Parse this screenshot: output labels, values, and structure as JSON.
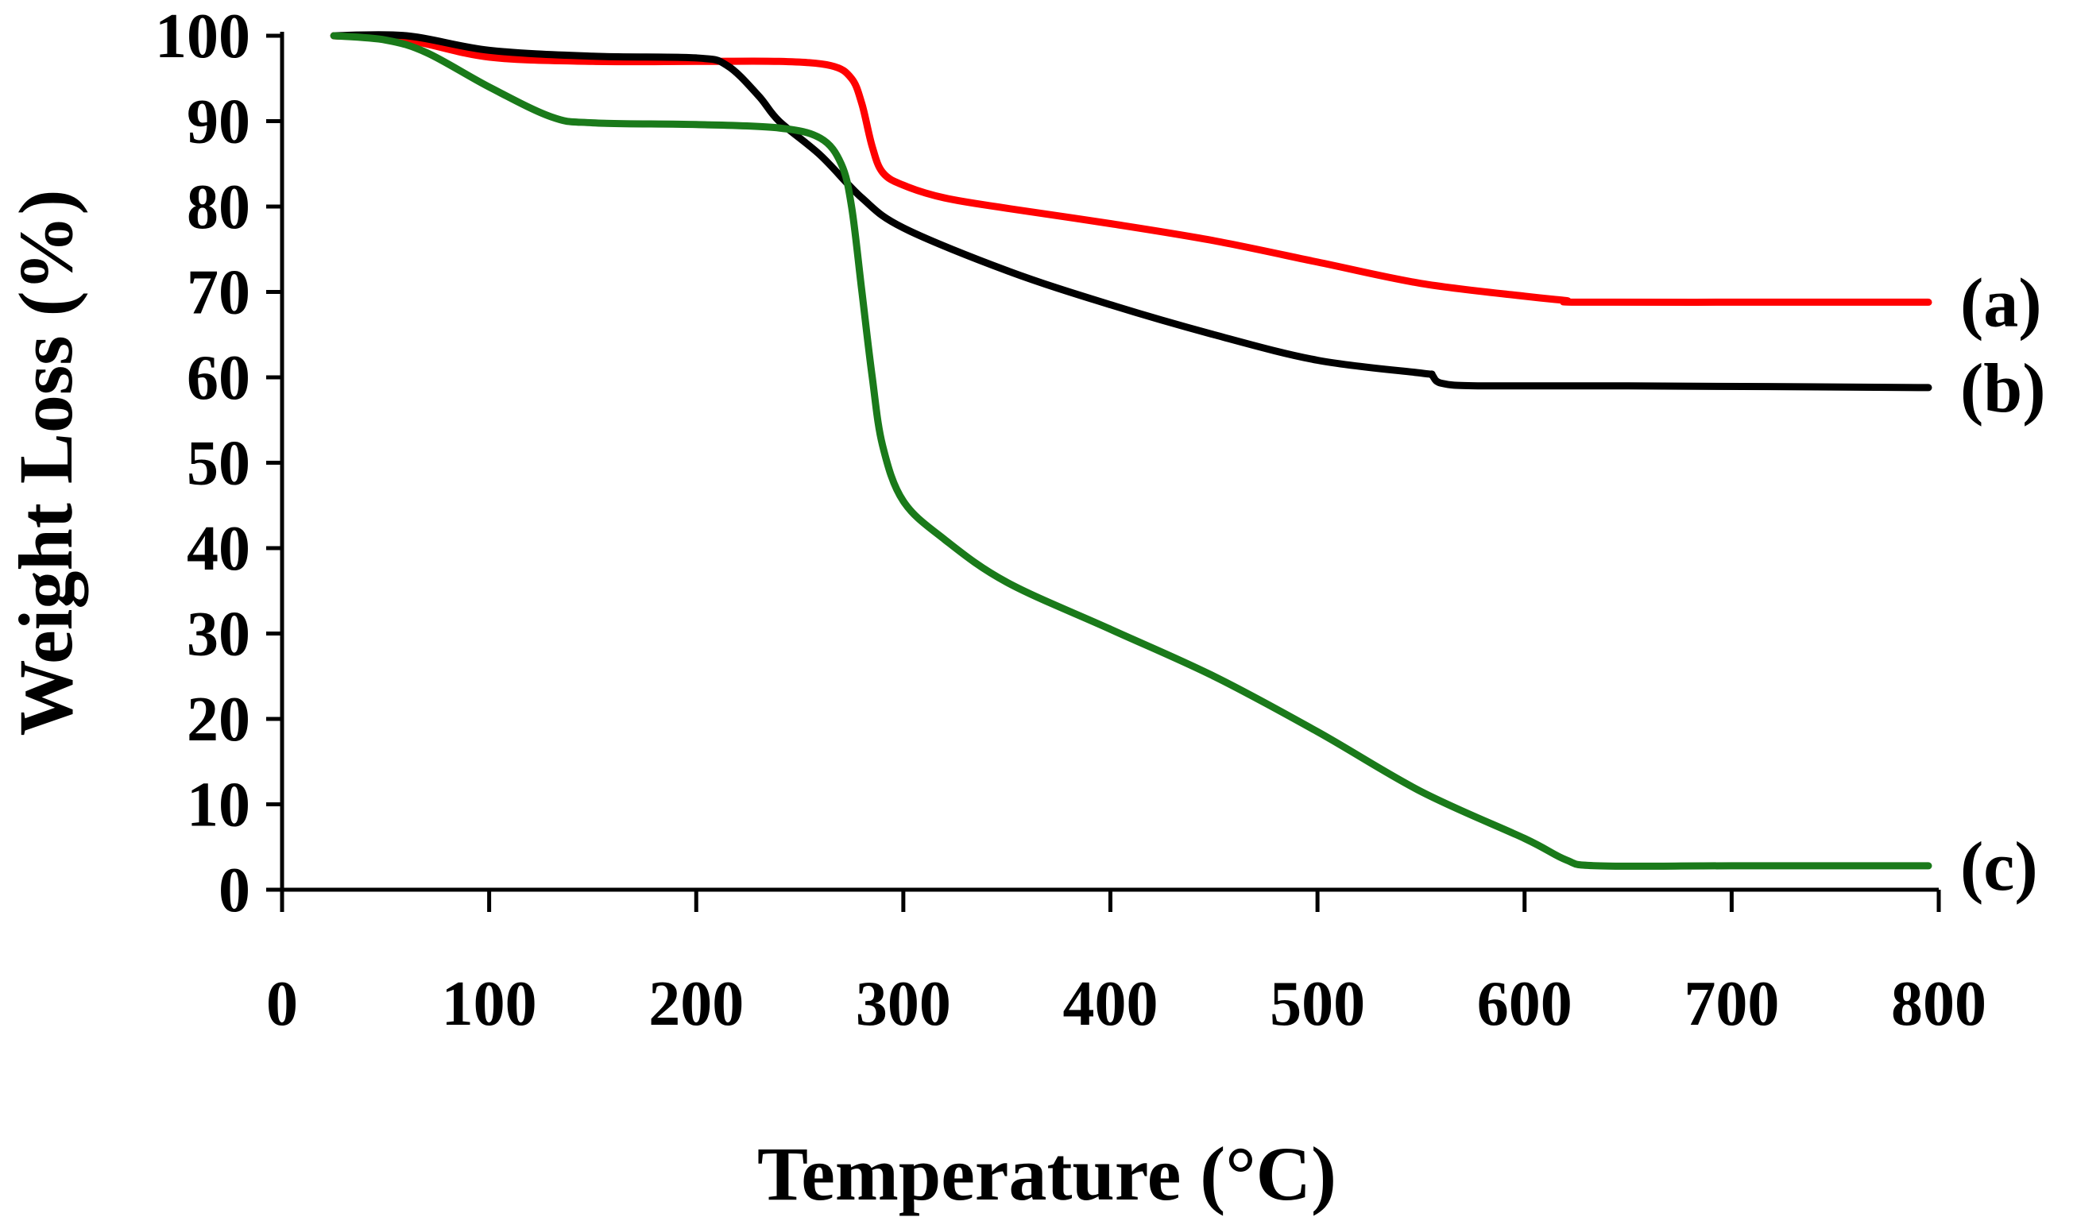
{
  "chart_data": {
    "type": "line",
    "title": "",
    "xlabel": "Temperature (°C)",
    "ylabel": "Weight Loss (%)",
    "xlim": [
      0,
      800
    ],
    "ylim": [
      0,
      100
    ],
    "xticks": [
      "0",
      "100",
      "200",
      "300",
      "400",
      "500",
      "600",
      "700",
      "800"
    ],
    "yticks": [
      "0",
      "10",
      "20",
      "30",
      "40",
      "50",
      "60",
      "70",
      "80",
      "90",
      "100"
    ],
    "grid": false,
    "series": [
      {
        "name": "(a)",
        "color": "#ff0000",
        "x": [
          25,
          60,
          100,
          150,
          200,
          240,
          265,
          275,
          280,
          285,
          290,
          300,
          320,
          350,
          400,
          450,
          500,
          550,
          600,
          620,
          625,
          700,
          795
        ],
        "y": [
          100,
          99.5,
          97.5,
          97,
          97,
          97,
          96.5,
          95,
          92,
          87,
          84,
          82.5,
          81,
          79.8,
          78,
          76,
          73.5,
          71,
          69.5,
          69,
          68.8,
          68.8,
          68.8
        ]
      },
      {
        "name": "(b)",
        "color": "#000000",
        "x": [
          25,
          60,
          100,
          150,
          200,
          215,
          230,
          240,
          260,
          280,
          300,
          350,
          400,
          450,
          500,
          550,
          555,
          560,
          580,
          650,
          795
        ],
        "y": [
          100,
          100,
          98.3,
          97.6,
          97.4,
          96.5,
          93,
          90,
          86,
          81,
          77.5,
          72.5,
          68.5,
          65,
          62,
          60.5,
          60.3,
          59.3,
          59,
          59,
          58.8
        ]
      },
      {
        "name": "(c)",
        "color": "#1a7a1a",
        "x": [
          25,
          50,
          70,
          100,
          130,
          150,
          200,
          240,
          260,
          270,
          275,
          280,
          285,
          290,
          300,
          320,
          350,
          400,
          450,
          500,
          550,
          600,
          620,
          635,
          700,
          795
        ],
        "y": [
          100,
          99.5,
          98,
          94,
          90.5,
          89.8,
          89.6,
          89.2,
          88,
          85,
          80,
          70,
          60,
          52,
          45.5,
          41,
          36,
          30.5,
          25,
          18.5,
          11.5,
          6,
          3.5,
          2.8,
          2.8,
          2.8
        ]
      }
    ]
  }
}
